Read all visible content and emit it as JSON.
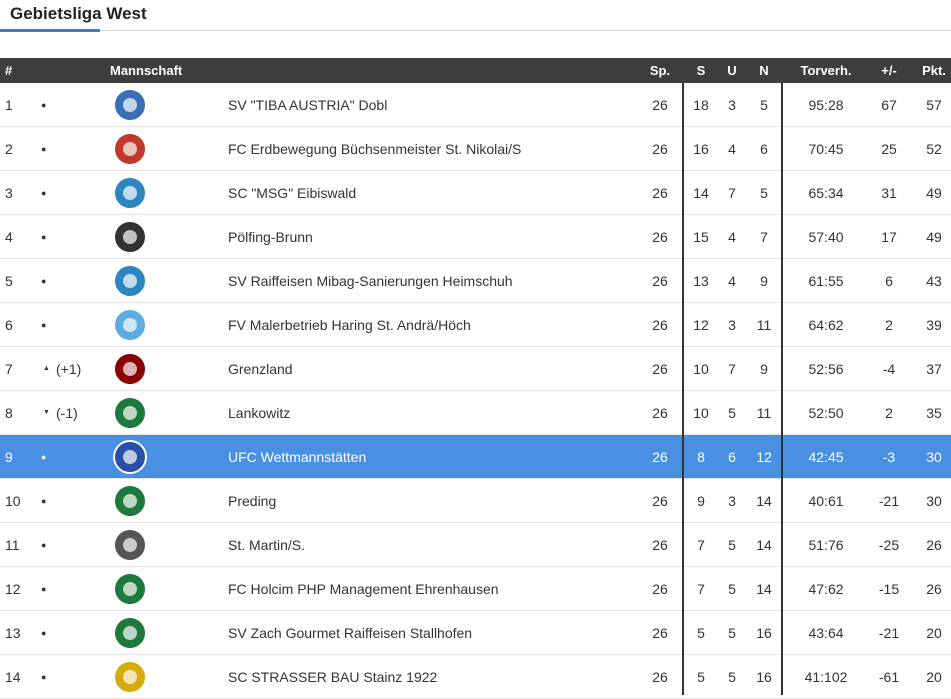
{
  "header": {
    "title": "Gebietsliga West"
  },
  "table": {
    "columns": [
      "#",
      "Mannschaft",
      "Sp.",
      "S",
      "U",
      "N",
      "Torverh.",
      "+/-",
      "Pkt."
    ],
    "rows": [
      {
        "rank": 1,
        "team": "SV \"TIBA AUSTRIA\" Dobl",
        "sp": 26,
        "s": 18,
        "u": 3,
        "n": 5,
        "goals": "95:28",
        "diff": 67,
        "pts": 57
      },
      {
        "rank": 2,
        "team": "FC Erdbewegung Büchsenmeister St. Nikolai/S",
        "sp": 26,
        "s": 16,
        "u": 4,
        "n": 6,
        "goals": "70:45",
        "diff": 25,
        "pts": 52
      },
      {
        "rank": 3,
        "team": "SC \"MSG\" Eibiswald",
        "sp": 26,
        "s": 14,
        "u": 7,
        "n": 5,
        "goals": "65:34",
        "diff": 31,
        "pts": 49
      },
      {
        "rank": 4,
        "team": "Pölfing-Brunn",
        "sp": 26,
        "s": 15,
        "u": 4,
        "n": 7,
        "goals": "57:40",
        "diff": 17,
        "pts": 49
      },
      {
        "rank": 5,
        "team": "SV Raiffeisen Mibag-Sanierungen Heimschuh",
        "sp": 26,
        "s": 13,
        "u": 4,
        "n": 9,
        "goals": "61:55",
        "diff": 6,
        "pts": 43
      },
      {
        "rank": 6,
        "team": "FV Malerbetrieb Haring St. Andrä/Höch",
        "sp": 26,
        "s": 12,
        "u": 3,
        "n": 11,
        "goals": "64:62",
        "diff": 2,
        "pts": 39
      },
      {
        "rank": 7,
        "move": "(+1)",
        "trend": "up",
        "team": "Grenzland",
        "sp": 26,
        "s": 10,
        "u": 7,
        "n": 9,
        "goals": "52:56",
        "diff": -4,
        "pts": 37
      },
      {
        "rank": 8,
        "move": "(-1)",
        "trend": "down",
        "team": "Lankowitz",
        "sp": 26,
        "s": 10,
        "u": 5,
        "n": 11,
        "goals": "52:50",
        "diff": 2,
        "pts": 35
      },
      {
        "rank": 9,
        "highlight": true,
        "team": "UFC Wettmannstätten",
        "sp": 26,
        "s": 8,
        "u": 6,
        "n": 12,
        "goals": "42:45",
        "diff": -3,
        "pts": 30
      },
      {
        "rank": 10,
        "team": "Preding",
        "sp": 26,
        "s": 9,
        "u": 3,
        "n": 14,
        "goals": "40:61",
        "diff": -21,
        "pts": 30
      },
      {
        "rank": 11,
        "team": "St. Martin/S.",
        "sp": 26,
        "s": 7,
        "u": 5,
        "n": 14,
        "goals": "51:76",
        "diff": -25,
        "pts": 26
      },
      {
        "rank": 12,
        "team": "FC Holcim PHP Management Ehrenhausen",
        "sp": 26,
        "s": 7,
        "u": 5,
        "n": 14,
        "goals": "47:62",
        "diff": -15,
        "pts": 26
      },
      {
        "rank": 13,
        "team": "SV Zach Gourmet Raiffeisen Stallhofen",
        "sp": 26,
        "s": 5,
        "u": 5,
        "n": 16,
        "goals": "43:64",
        "diff": -21,
        "pts": 20
      },
      {
        "rank": 14,
        "team": "SC STRASSER BAU Stainz 1922",
        "sp": 26,
        "s": 5,
        "u": 5,
        "n": 16,
        "goals": "41:102",
        "diff": -61,
        "pts": 20
      }
    ]
  }
}
